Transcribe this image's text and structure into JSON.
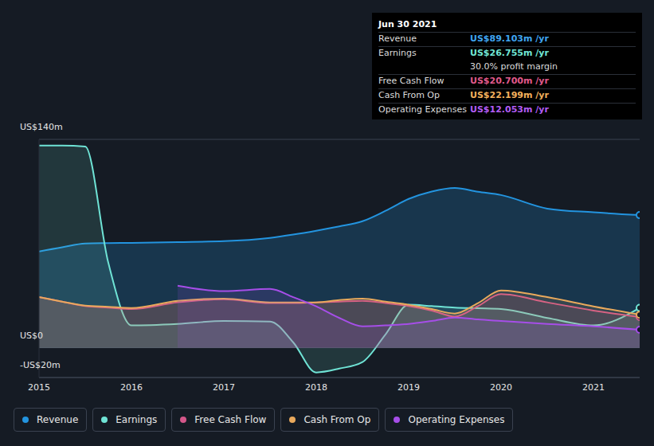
{
  "chart_data": {
    "type": "area",
    "x": [
      2015,
      2015.25,
      2015.5,
      2015.75,
      2016,
      2016.5,
      2017,
      2017.5,
      2017.75,
      2018,
      2018.25,
      2018.5,
      2018.75,
      2019,
      2019.25,
      2019.5,
      2019.75,
      2020,
      2020.5,
      2021,
      2021.5
    ],
    "series": [
      {
        "name": "Revenue",
        "color": "#2394df",
        "values": [
          64.7,
          67.5,
          70,
          70.3,
          70.5,
          71,
          71.6,
          73.8,
          76,
          78.6,
          81.5,
          85,
          92,
          100,
          105,
          107.4,
          104.8,
          102.6,
          93.5,
          91,
          89.1
        ]
      },
      {
        "name": "Earnings",
        "color": "#6fe3d5",
        "values": [
          135.8,
          135.8,
          135.2,
          57,
          15,
          16,
          18,
          17.6,
          3.7,
          -16.6,
          -14,
          -9.6,
          9,
          28.9,
          28,
          27,
          26.5,
          26,
          20,
          15,
          26.8
        ]
      },
      {
        "name": "Free Cash Flow",
        "color": "#d4578a",
        "values": [
          34,
          31,
          28,
          27,
          26,
          30.5,
          32.6,
          30,
          30,
          30.5,
          31,
          31.5,
          30,
          28,
          25,
          21,
          28,
          36,
          30.5,
          25,
          20.7
        ]
      },
      {
        "name": "Cash From Op",
        "color": "#e9a95c",
        "values": [
          34,
          31,
          28.3,
          27.5,
          26.7,
          31.5,
          33,
          30.5,
          30.5,
          30.5,
          32,
          33,
          31,
          28.9,
          26,
          23,
          30,
          38.5,
          34,
          27.8,
          22.2
        ]
      },
      {
        "name": "Operating Expenses",
        "color": "#a64ee8",
        "values": [
          null,
          null,
          null,
          null,
          null,
          41.7,
          38,
          39.5,
          34,
          27.8,
          20,
          14.4,
          15,
          16,
          18,
          20.3,
          19,
          18,
          16,
          14.4,
          12.1
        ]
      }
    ],
    "xlim": [
      2015,
      2021.5
    ],
    "xticks": [
      2015,
      2016,
      2017,
      2018,
      2019,
      2020,
      2021
    ],
    "ylim": [
      -20,
      140
    ],
    "yticks": [
      {
        "value": -20,
        "label": "-US$20m"
      },
      {
        "value": 0,
        "label": "US$0"
      },
      {
        "value": 140,
        "label": "US$140m"
      }
    ],
    "grid": true,
    "legend": "bottom",
    "annotations": [
      {
        "title": "Jun 30 2021",
        "rows": [
          {
            "label": "Revenue",
            "value": "US$89.103m /yr",
            "color": "#3fa5f0"
          },
          {
            "label": "Earnings",
            "value": "US$26.755m /yr",
            "color": "#71e7d6"
          },
          {
            "value": "30.0% profit margin",
            "color": "#dddddd"
          },
          {
            "label": "Free Cash Flow",
            "value": "US$20.700m /yr",
            "color": "#e0598b"
          },
          {
            "label": "Cash From Op",
            "value": "US$22.199m /yr",
            "color": "#f3b05c"
          },
          {
            "label": "Operating Expenses",
            "value": "US$12.053m /yr",
            "color": "#b35cf5"
          }
        ]
      }
    ]
  }
}
